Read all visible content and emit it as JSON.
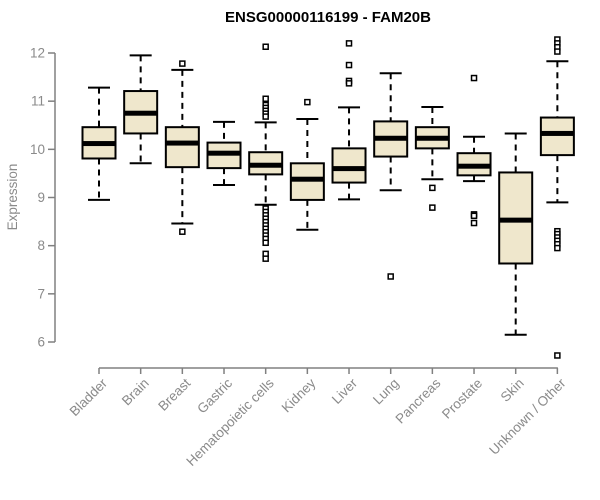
{
  "chart_data": {
    "type": "boxplot",
    "title": "ENSG00000116199 - FAM20B",
    "xlabel": "",
    "ylabel": "Expression",
    "ylim": [
      6,
      12
    ],
    "yticks": [
      6,
      7,
      8,
      9,
      10,
      11,
      12
    ],
    "grid": false,
    "legend": "none",
    "colors": {
      "box_fill": "#EFE7CC",
      "box_border": "#000000",
      "median": "#000000",
      "whisker": "#000000",
      "outlier_fill": "#ffffff",
      "outlier_border": "#000000",
      "axis": "#808080",
      "tick_text": "#8a8a8a",
      "title_text": "#000000"
    },
    "categories": [
      "Bladder",
      "Brain",
      "Breast",
      "Gastric",
      "Hematopoietic cells",
      "Kidney",
      "Liver",
      "Lung",
      "Pancreas",
      "Prostate",
      "Skin",
      "Unknown / Other"
    ],
    "series": [
      {
        "name": "Bladder",
        "whisker_low": 8.95,
        "q1": 9.81,
        "median": 10.12,
        "q3": 10.46,
        "whisker_high": 11.28,
        "outliers": []
      },
      {
        "name": "Brain",
        "whisker_low": 9.71,
        "q1": 10.33,
        "median": 10.75,
        "q3": 11.21,
        "whisker_high": 11.95,
        "outliers": []
      },
      {
        "name": "Breast",
        "whisker_low": 8.46,
        "q1": 9.63,
        "median": 10.13,
        "q3": 10.46,
        "whisker_high": 11.65,
        "outliers": [
          11.78,
          8.29
        ]
      },
      {
        "name": "Gastric",
        "whisker_low": 9.26,
        "q1": 9.61,
        "median": 9.92,
        "q3": 10.14,
        "whisker_high": 10.57,
        "outliers": []
      },
      {
        "name": "Hematopoietic cells",
        "whisker_low": 8.85,
        "q1": 9.48,
        "median": 9.67,
        "q3": 9.94,
        "whisker_high": 10.56,
        "outliers": [
          12.13,
          11.05,
          10.92,
          10.86,
          10.8,
          10.74,
          10.68,
          8.77,
          8.7,
          8.63,
          8.56,
          8.49,
          8.42,
          8.35,
          8.28,
          8.21,
          8.14,
          8.06,
          7.83,
          7.73
        ]
      },
      {
        "name": "Kidney",
        "whisker_low": 8.33,
        "q1": 8.95,
        "median": 9.38,
        "q3": 9.71,
        "whisker_high": 10.63,
        "outliers": [
          10.98
        ]
      },
      {
        "name": "Liver",
        "whisker_low": 8.96,
        "q1": 9.31,
        "median": 9.6,
        "q3": 10.02,
        "whisker_high": 10.87,
        "outliers": [
          12.2,
          11.75,
          11.42,
          11.37
        ]
      },
      {
        "name": "Lung",
        "whisker_low": 9.15,
        "q1": 9.85,
        "median": 10.23,
        "q3": 10.58,
        "whisker_high": 11.58,
        "outliers": [
          7.36
        ]
      },
      {
        "name": "Pancreas",
        "whisker_low": 9.38,
        "q1": 10.02,
        "median": 10.23,
        "q3": 10.46,
        "whisker_high": 10.88,
        "outliers": [
          9.2,
          8.79
        ]
      },
      {
        "name": "Prostate",
        "whisker_low": 9.34,
        "q1": 9.46,
        "median": 9.65,
        "q3": 9.92,
        "whisker_high": 10.26,
        "outliers": [
          11.48,
          8.65,
          8.62,
          8.47
        ]
      },
      {
        "name": "Skin",
        "whisker_low": 6.15,
        "q1": 7.63,
        "median": 8.53,
        "q3": 9.52,
        "whisker_high": 10.33,
        "outliers": []
      },
      {
        "name": "Unknown / Other",
        "whisker_low": 8.9,
        "q1": 9.88,
        "median": 10.33,
        "q3": 10.66,
        "whisker_high": 11.83,
        "outliers": [
          12.28,
          12.2,
          12.12,
          12.03,
          8.3,
          8.24,
          8.17,
          8.1,
          8.03,
          7.95,
          5.72
        ]
      }
    ]
  }
}
